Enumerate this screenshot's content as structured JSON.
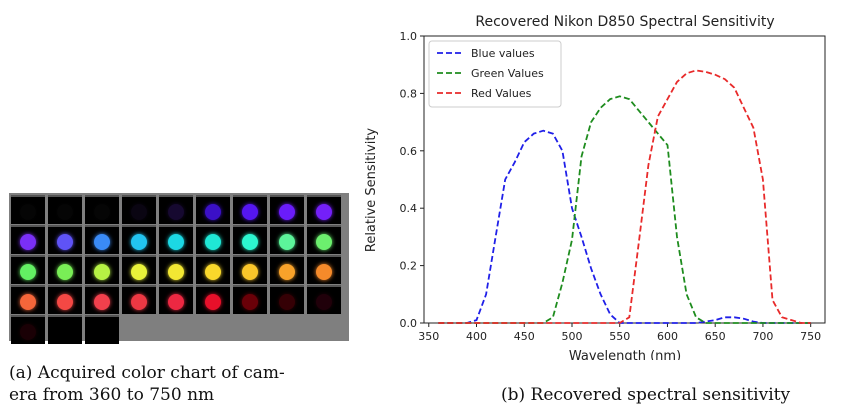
{
  "captions": {
    "a_line1": "(a) Acquired color chart of cam-",
    "a_line2": "era from 360 to 750 nm",
    "b": "(b) Recovered spectral sensitivity"
  },
  "color_grid": {
    "columns": 9,
    "tiles": [
      "#050505",
      "#050505",
      "#050505",
      "#0a0512",
      "#160930",
      "#3b10c7",
      "#5516f0",
      "#6a1cfa",
      "#7420f8",
      "#7a2ff6",
      "#5f53f7",
      "#3a8bf7",
      "#22c4f0",
      "#1cd8e4",
      "#1fe8d6",
      "#2cf6cf",
      "#5cf49a",
      "#6cf06e",
      "#63ef63",
      "#79ee56",
      "#b6f244",
      "#e8f23a",
      "#f2e733",
      "#f9d82b",
      "#fac62a",
      "#f8a22a",
      "#f58a2a",
      "#f5663a",
      "#f44844",
      "#f2404c",
      "#ee3843",
      "#ec2842",
      "#e8102a",
      "#6a0008",
      "#350005",
      "#20000a",
      "#1a0005",
      "#000000",
      "#000000"
    ]
  },
  "chart_data": {
    "type": "line",
    "title": "Recovered Nikon D850 Spectral Sensitivity",
    "xlabel": "Wavelength (nm)",
    "ylabel": "Relative  Sensitivity",
    "xlim": [
      345,
      765
    ],
    "ylim": [
      0,
      1.0
    ],
    "xticks": [
      350,
      400,
      450,
      500,
      550,
      600,
      650,
      700,
      750
    ],
    "yticks": [
      0.0,
      0.2,
      0.4,
      0.6,
      0.8,
      1.0
    ],
    "ytick_labels": [
      "0.0",
      "0.2",
      "0.4",
      "0.6",
      "0.8",
      "1.0"
    ],
    "legend_position": "top-left",
    "x": [
      360,
      370,
      380,
      390,
      400,
      410,
      420,
      430,
      440,
      450,
      460,
      470,
      480,
      490,
      500,
      510,
      520,
      530,
      540,
      550,
      560,
      570,
      580,
      590,
      600,
      610,
      620,
      630,
      640,
      650,
      660,
      670,
      680,
      690,
      700,
      710,
      720,
      730,
      740,
      750
    ],
    "series": [
      {
        "name": "Blue values",
        "color": "#1f1fe8",
        "values": [
          0.0,
          0.0,
          0.0,
          0.0,
          0.01,
          0.1,
          0.3,
          0.5,
          0.56,
          0.63,
          0.66,
          0.67,
          0.66,
          0.6,
          0.4,
          0.3,
          0.19,
          0.1,
          0.03,
          0.0,
          0.0,
          0.0,
          0.0,
          0.0,
          0.0,
          0.0,
          0.0,
          0.0,
          0.005,
          0.01,
          0.02,
          0.02,
          0.015,
          0.005,
          0.0,
          0.0,
          0.0,
          0.0,
          0.0,
          0.0
        ]
      },
      {
        "name": "Green Values",
        "color": "#1e8c1e",
        "values": [
          0.0,
          0.0,
          0.0,
          0.0,
          0.0,
          0.0,
          0.0,
          0.0,
          0.0,
          0.0,
          0.0,
          0.0,
          0.02,
          0.14,
          0.29,
          0.58,
          0.7,
          0.75,
          0.78,
          0.79,
          0.78,
          0.74,
          0.7,
          0.66,
          0.62,
          0.3,
          0.1,
          0.02,
          0.0,
          0.0,
          0.0,
          0.0,
          0.0,
          0.0,
          0.0,
          0.0,
          0.0,
          0.0,
          0.0,
          0.0
        ]
      },
      {
        "name": "Red Values",
        "color": "#e82a2a",
        "values": [
          0.0,
          0.0,
          0.0,
          0.0,
          0.0,
          0.0,
          0.0,
          0.0,
          0.0,
          0.0,
          0.0,
          0.0,
          0.0,
          0.0,
          0.0,
          0.0,
          0.0,
          0.0,
          0.0,
          0.0,
          0.02,
          0.28,
          0.55,
          0.72,
          0.78,
          0.84,
          0.87,
          0.88,
          0.875,
          0.865,
          0.85,
          0.82,
          0.75,
          0.68,
          0.5,
          0.08,
          0.02,
          0.01,
          0.0,
          0.0
        ]
      }
    ]
  }
}
